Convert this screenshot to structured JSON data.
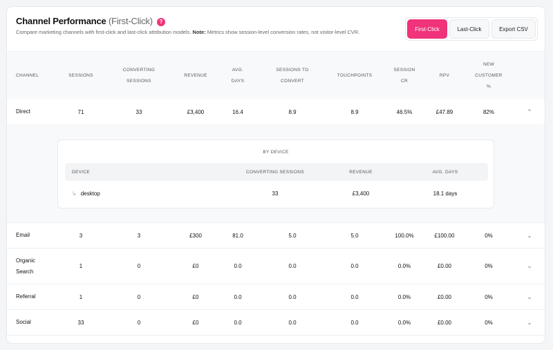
{
  "header": {
    "title": "Channel Performance",
    "model": "(First-Click)",
    "help_icon": "?",
    "description": "Compare marketing channels with first-click and last-click attribution models.",
    "note_label": "Note:",
    "note_text": "Metrics show session-level conversion rates, not visitor-level CVR."
  },
  "buttons": {
    "first_click": "First-Click",
    "last_click": "Last-Click",
    "export": "Export CSV",
    "accent": "#f0337a"
  },
  "table": {
    "headers": [
      [
        "CHANNEL"
      ],
      [
        "SESSIONS"
      ],
      [
        "CONVERTING",
        "SESSIONS"
      ],
      [
        "REVENUE"
      ],
      [
        "AVG.",
        "DAYS"
      ],
      [
        "SESSIONS TO",
        "CONVERT"
      ],
      [
        "TOUCHPOINTS"
      ],
      [
        "SESSION",
        "CR"
      ],
      [
        "RPV"
      ],
      [
        "NEW",
        "CUSTOMER",
        "%"
      ]
    ],
    "rows": [
      {
        "channel": [
          "Direct"
        ],
        "sessions": "71",
        "converting": "33",
        "revenue": "£3,400",
        "avg_days": "16.4",
        "stc": "8.9",
        "touchpoints": "8.9",
        "cr": "46.5%",
        "rpv": "£47.89",
        "new_pct": "82%",
        "expanded": true
      },
      {
        "channel": [
          "Email"
        ],
        "sessions": "3",
        "converting": "3",
        "revenue": "£300",
        "avg_days": "81.0",
        "stc": "5.0",
        "touchpoints": "5.0",
        "cr": "100.0%",
        "rpv": "£100.00",
        "new_pct": "0%",
        "expanded": false
      },
      {
        "channel": [
          "Organic",
          "Search"
        ],
        "sessions": "1",
        "converting": "0",
        "revenue": "£0",
        "avg_days": "0.0",
        "stc": "0.0",
        "touchpoints": "0.0",
        "cr": "0.0%",
        "rpv": "£0.00",
        "new_pct": "0%",
        "expanded": false
      },
      {
        "channel": [
          "Referral"
        ],
        "sessions": "1",
        "converting": "0",
        "revenue": "£0",
        "avg_days": "0.0",
        "stc": "0.0",
        "touchpoints": "0.0",
        "cr": "0.0%",
        "rpv": "£0.00",
        "new_pct": "0%",
        "expanded": false
      },
      {
        "channel": [
          "Social"
        ],
        "sessions": "33",
        "converting": "0",
        "revenue": "£0",
        "avg_days": "0.0",
        "stc": "0.0",
        "touchpoints": "0.0",
        "cr": "0.0%",
        "rpv": "£0.00",
        "new_pct": "0%",
        "expanded": false
      }
    ]
  },
  "device": {
    "title": "BY DEVICE",
    "headers": [
      "DEVICE",
      "CONVERTING SESSIONS",
      "REVENUE",
      "AVG. DAYS"
    ],
    "rows": [
      {
        "device": "desktop",
        "converting": "33",
        "revenue": "£3,400",
        "avg_days": "18.1 days"
      }
    ]
  }
}
